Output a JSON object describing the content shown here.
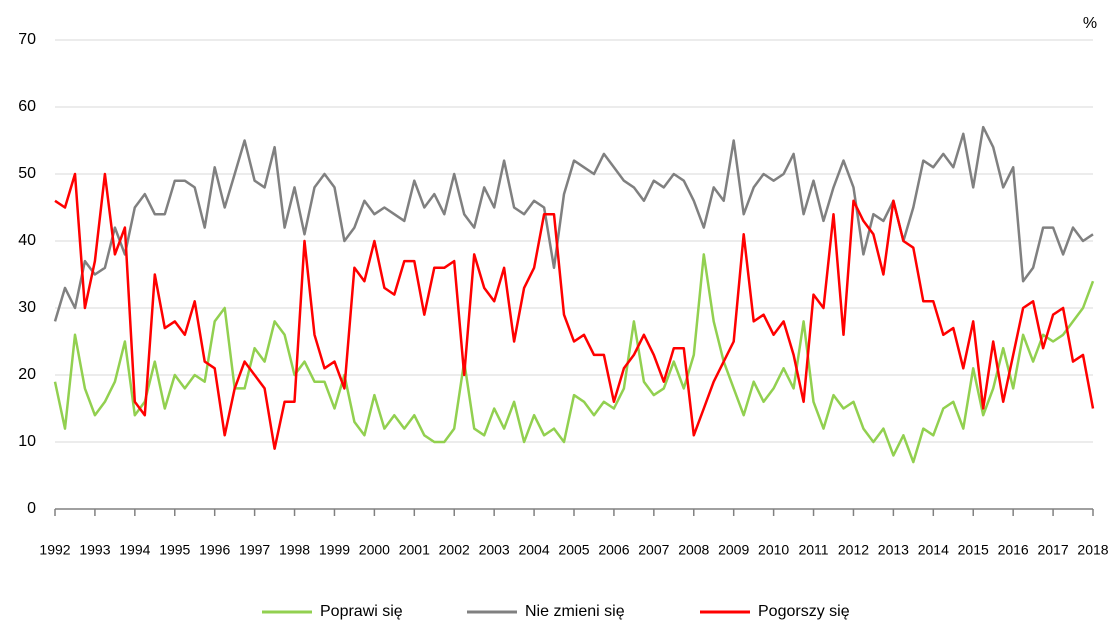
{
  "chart_data": {
    "type": "line",
    "y_label": "%",
    "x": [
      1992,
      1992.25,
      1992.5,
      1992.75,
      1993,
      1993.25,
      1993.5,
      1993.75,
      1994,
      1994.25,
      1994.5,
      1994.75,
      1995,
      1995.25,
      1995.5,
      1995.75,
      1996,
      1996.25,
      1996.5,
      1996.75,
      1997,
      1997.25,
      1997.5,
      1997.75,
      1998,
      1998.25,
      1998.5,
      1998.75,
      1999,
      1999.25,
      1999.5,
      1999.75,
      2000,
      2000.25,
      2000.5,
      2000.75,
      2001,
      2001.25,
      2001.5,
      2001.75,
      2002,
      2002.25,
      2002.5,
      2002.75,
      2003,
      2003.25,
      2003.5,
      2003.75,
      2004,
      2004.25,
      2004.5,
      2004.75,
      2005,
      2005.25,
      2005.5,
      2005.75,
      2006,
      2006.25,
      2006.5,
      2006.75,
      2007,
      2007.25,
      2007.5,
      2007.75,
      2008,
      2008.25,
      2008.5,
      2008.75,
      2009,
      2009.25,
      2009.5,
      2009.75,
      2010,
      2010.25,
      2010.5,
      2010.75,
      2011,
      2011.25,
      2011.5,
      2011.75,
      2012,
      2012.25,
      2012.5,
      2012.75,
      2013,
      2013.25,
      2013.5,
      2013.75,
      2014,
      2014.25,
      2014.5,
      2014.75,
      2015,
      2015.25,
      2015.5,
      2015.75,
      2016,
      2016.25,
      2016.5,
      2016.75,
      2017,
      2017.25,
      2017.5,
      2017.75,
      2018
    ],
    "series": [
      {
        "name": "Poprawi się",
        "color": "#92d050",
        "values": [
          19,
          12,
          26,
          18,
          14,
          16,
          19,
          25,
          14,
          16,
          22,
          15,
          20,
          18,
          20,
          19,
          28,
          30,
          18,
          18,
          24,
          22,
          28,
          26,
          20,
          22,
          19,
          19,
          15,
          20,
          13,
          11,
          17,
          12,
          14,
          12,
          14,
          11,
          10,
          10,
          12,
          22,
          12,
          11,
          15,
          12,
          16,
          10,
          14,
          11,
          12,
          10,
          17,
          16,
          14,
          16,
          15,
          18,
          28,
          19,
          17,
          18,
          22,
          18,
          23,
          38,
          28,
          22,
          18,
          14,
          19,
          16,
          18,
          21,
          18,
          28,
          16,
          12,
          17,
          15,
          16,
          12,
          10,
          12,
          8,
          11,
          7,
          12,
          11,
          15,
          16,
          12,
          21,
          14,
          18,
          24,
          18,
          26,
          22,
          26,
          25,
          26,
          28,
          30,
          34
        ]
      },
      {
        "name": "Nie zmieni się",
        "color": "#808080",
        "values": [
          28,
          33,
          30,
          37,
          35,
          36,
          42,
          38,
          45,
          47,
          44,
          44,
          49,
          49,
          48,
          42,
          51,
          45,
          50,
          55,
          49,
          48,
          54,
          42,
          48,
          41,
          48,
          50,
          48,
          40,
          42,
          46,
          44,
          45,
          44,
          43,
          49,
          45,
          47,
          44,
          50,
          44,
          42,
          48,
          45,
          52,
          45,
          44,
          46,
          45,
          36,
          47,
          52,
          51,
          50,
          53,
          51,
          49,
          48,
          46,
          49,
          48,
          50,
          49,
          46,
          42,
          48,
          46,
          55,
          44,
          48,
          50,
          49,
          50,
          53,
          44,
          49,
          43,
          48,
          52,
          48,
          38,
          44,
          43,
          46,
          40,
          45,
          52,
          51,
          53,
          51,
          56,
          48,
          57,
          54,
          48,
          51,
          34,
          36,
          42,
          42,
          38,
          42,
          40,
          41
        ]
      },
      {
        "name": "Pogorszy się",
        "color": "#ff0000",
        "values": [
          46,
          45,
          50,
          30,
          37,
          50,
          38,
          42,
          16,
          14,
          35,
          27,
          28,
          26,
          31,
          22,
          21,
          11,
          18,
          22,
          20,
          18,
          9,
          16,
          16,
          40,
          26,
          21,
          22,
          18,
          36,
          34,
          40,
          33,
          32,
          37,
          37,
          29,
          36,
          36,
          37,
          20,
          38,
          33,
          31,
          36,
          25,
          33,
          36,
          44,
          44,
          29,
          25,
          26,
          23,
          23,
          16,
          21,
          23,
          26,
          23,
          19,
          24,
          24,
          11,
          15,
          19,
          22,
          25,
          41,
          28,
          29,
          26,
          28,
          23,
          16,
          32,
          30,
          44,
          26,
          46,
          43,
          41,
          35,
          46,
          40,
          39,
          31,
          31,
          26,
          27,
          21,
          28,
          15,
          25,
          16,
          23,
          30,
          31,
          24,
          29,
          30,
          22,
          23,
          15
        ]
      }
    ],
    "xlim": [
      1992,
      2018
    ],
    "xticks": [
      1992,
      1993,
      1994,
      1995,
      1996,
      1997,
      1998,
      1999,
      2000,
      2001,
      2002,
      2003,
      2004,
      2005,
      2006,
      2007,
      2008,
      2009,
      2010,
      2011,
      2012,
      2013,
      2014,
      2015,
      2016,
      2017,
      2018
    ],
    "ylim": [
      0,
      70
    ],
    "yticks": [
      0,
      10,
      20,
      30,
      40,
      50,
      60,
      70
    ],
    "grid": true,
    "legend": "bottom"
  }
}
